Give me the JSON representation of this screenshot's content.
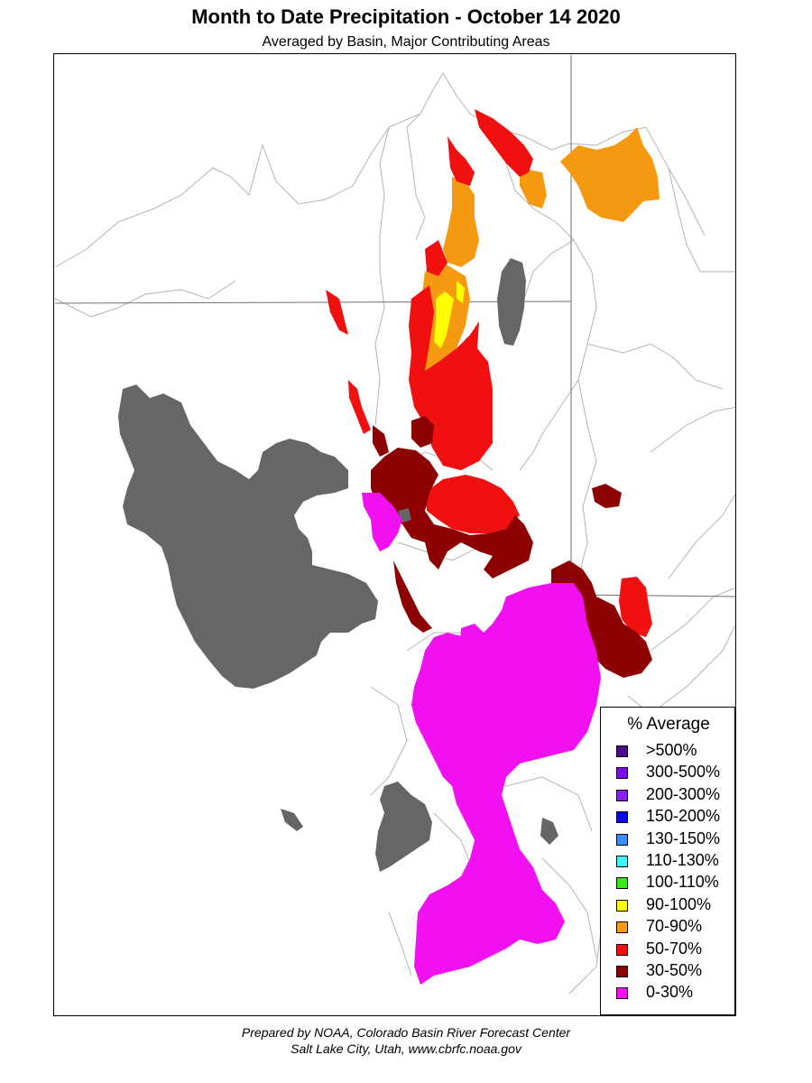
{
  "title": "Month to Date Precipitation - October 14 2020",
  "subtitle": "Averaged by Basin, Major Contributing Areas",
  "legend": {
    "title": "% Average",
    "items": [
      {
        "label": ">500%",
        "color": "#4b0d8a"
      },
      {
        "label": "300-500%",
        "color": "#7a10e6"
      },
      {
        "label": "200-300%",
        "color": "#8a1ef0"
      },
      {
        "label": "150-200%",
        "color": "#0a0af0"
      },
      {
        "label": "130-150%",
        "color": "#3a8ef5"
      },
      {
        "label": "110-130%",
        "color": "#40f5f5"
      },
      {
        "label": "100-110%",
        "color": "#3ae619"
      },
      {
        "label": "90-100%",
        "color": "#ffff00"
      },
      {
        "label": "70-90%",
        "color": "#f59a10"
      },
      {
        "label": "50-70%",
        "color": "#f01010"
      },
      {
        "label": "30-50%",
        "color": "#8c0000"
      },
      {
        "label": "0-30%",
        "color": "#f010f0"
      }
    ]
  },
  "colors": {
    "lake": "#666666",
    "boundary": "#b4b4b4",
    "state_line": "#707070"
  },
  "footer": {
    "line1": "Prepared by NOAA, Colorado Basin River Forecast Center",
    "line2": "Salt Lake City, Utah, www.cbrfc.noaa.gov"
  }
}
